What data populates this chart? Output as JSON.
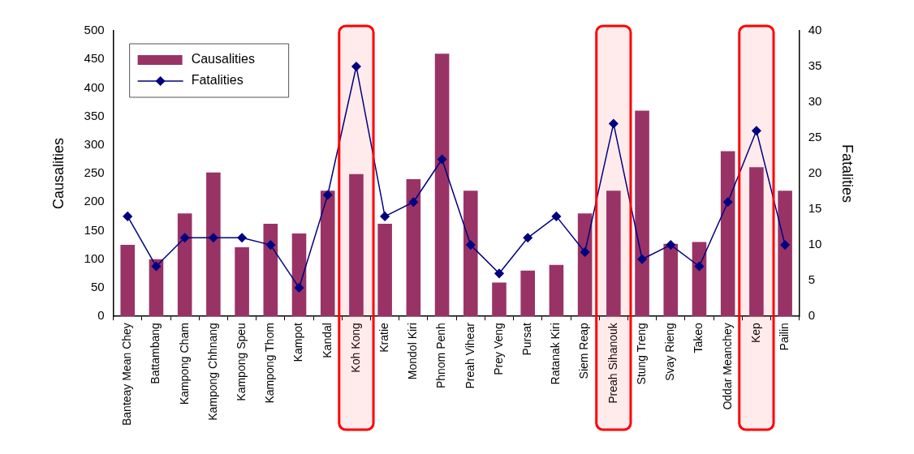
{
  "chart_data": {
    "type": "bar",
    "categories": [
      "Banteay Mean Chey",
      "Battambang",
      "Kampong Cham",
      "Kampong Chhnang",
      "Kampong Speu",
      "Kampong Thom",
      "Kampot",
      "Kandal",
      "Koh Kong",
      "Kratie",
      "Mondol Kiri",
      "Phnom Penh",
      "Preah Vihear",
      "Prey Veng",
      "Pursat",
      "Ratanak Kiri",
      "Siem Reap",
      "Preah Sihanouk",
      "Stung Treng",
      "Svay Rieng",
      "Takeo",
      "Oddar Meanchey",
      "Kep",
      "Pailin"
    ],
    "series": [
      {
        "name": "Causalities",
        "color": "#993366",
        "values": [
          125,
          100,
          180,
          252,
          121,
          162,
          145,
          220,
          249,
          162,
          240,
          460,
          220,
          59,
          80,
          90,
          180,
          220,
          360,
          127,
          130,
          289,
          261,
          220
        ]
      },
      {
        "name": "Fatalities",
        "type": "line",
        "axis": "y2",
        "color": "#000080",
        "marker": "diamond",
        "values": [
          14,
          7,
          11,
          11,
          11,
          10,
          4,
          17,
          35,
          14,
          16,
          22,
          10,
          6,
          11,
          14,
          9,
          27,
          8,
          10,
          7,
          16,
          26,
          10
        ]
      }
    ],
    "ylabel": "Causalities",
    "y2label": "Fatalities",
    "ylim": [
      0,
      500
    ],
    "yticks": [
      0,
      50,
      100,
      150,
      200,
      250,
      300,
      350,
      400,
      450,
      500
    ],
    "y2lim": [
      0,
      40
    ],
    "y2ticks": [
      0,
      5,
      10,
      15,
      20,
      25,
      30,
      35,
      40
    ],
    "bands": [
      {
        "axis": "x",
        "from": "Koh Kong",
        "to": "Koh Kong",
        "color": "#ff0000"
      },
      {
        "axis": "x",
        "from": "Preah Sihanouk",
        "to": "Preah Sihanouk",
        "color": "#ff0000"
      },
      {
        "axis": "x",
        "from": "Kep",
        "to": "Kep",
        "color": "#ff0000"
      }
    ],
    "grid": false,
    "legend": "top left"
  }
}
